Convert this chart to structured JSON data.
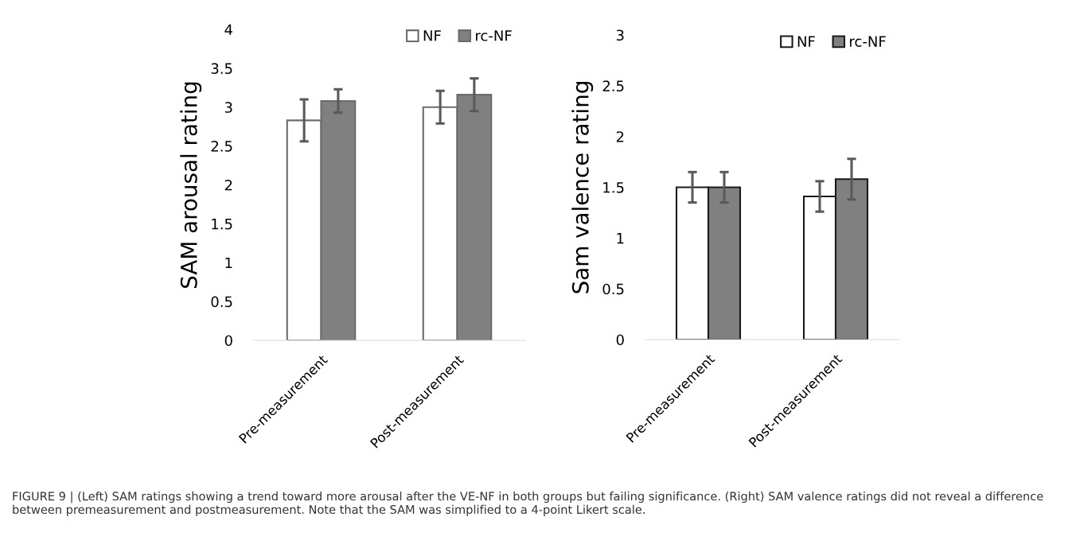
{
  "chart_data": [
    {
      "type": "bar",
      "ylabel": "SAM arousal rating",
      "categories": [
        "Pre-measurement",
        "Post-measurement"
      ],
      "ylim": [
        0,
        4
      ],
      "yticks": [
        0,
        0.5,
        1,
        1.5,
        2,
        2.5,
        3,
        3.5,
        4
      ],
      "grid": false,
      "legend": "top right",
      "series": [
        {
          "name": "NF",
          "color": "#ffffff",
          "values": [
            2.83,
            3.0
          ],
          "errors": [
            0.27,
            0.21
          ]
        },
        {
          "name": "rc-NF",
          "color": "#808080",
          "values": [
            3.08,
            3.16
          ],
          "errors": [
            0.15,
            0.21
          ]
        }
      ]
    },
    {
      "type": "bar",
      "ylabel": "Sam valence rating",
      "categories": [
        "Pre-measurement",
        "Post-measurement"
      ],
      "ylim": [
        0,
        3
      ],
      "yticks": [
        0,
        0.5,
        1,
        1.5,
        2,
        2.5,
        3
      ],
      "grid": false,
      "legend": "top right",
      "series": [
        {
          "name": "NF",
          "color": "#ffffff",
          "values": [
            1.5,
            1.41
          ],
          "errors": [
            0.15,
            0.15
          ]
        },
        {
          "name": "rc-NF",
          "color": "#808080",
          "values": [
            1.5,
            1.58
          ],
          "errors": [
            0.15,
            0.2
          ]
        }
      ],
      "annotations": [
        "FIGURE 9 | (Left) SAM ratings showing a trend toward more arousal after the VE-NF in both groups but failing significance. (Right) SAM valence ratings did not reveal a difference between premeasurement and postmeasurement. Note that the SAM was simplified to a 4-point Likert scale."
      ]
    }
  ]
}
